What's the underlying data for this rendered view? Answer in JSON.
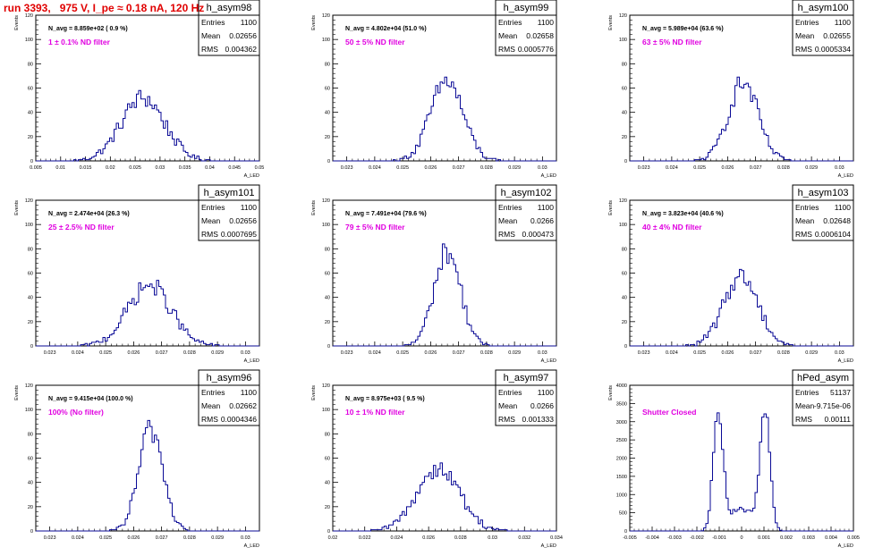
{
  "page": {
    "title": "run 3393,   975 V, I_pe ≈ 0.18 nA, 120 Hz"
  },
  "colors": {
    "histogram": "#0a0a96",
    "filter_label": "#e000e0",
    "title": "#e00000",
    "frame": "#000000"
  },
  "chart_data": [
    {
      "type": "bar",
      "name": "h_asym98",
      "annotation": "N_avg = 8.859e+02 ( 0.9 %)",
      "filter_label": "1 ± 0.1% ND filter",
      "stats": {
        "Entries": "1100",
        "Mean": "0.02656",
        "RMS": "0.004362"
      },
      "ylabel": "Events",
      "xlabel": "A_LED",
      "xlim": [
        0.005,
        0.05
      ],
      "ylim": [
        0,
        120
      ],
      "xticks": [
        "0.005",
        "0.01",
        "0.015",
        "0.02",
        "0.025",
        "0.03",
        "0.035",
        "0.04",
        "0.045",
        "0.05"
      ],
      "yticks": [
        "0",
        "20",
        "40",
        "60",
        "80",
        "100",
        "120"
      ],
      "peak": {
        "center": 0.02656,
        "rms": 0.004362,
        "height": 52
      }
    },
    {
      "type": "bar",
      "name": "h_asym99",
      "annotation": "N_avg = 4.802e+04 (51.0 %)",
      "filter_label": "50 ± 5% ND filter",
      "stats": {
        "Entries": "1100",
        "Mean": "0.02658",
        "RMS": "0.0005776"
      },
      "ylabel": "Events",
      "xlabel": "A_LED",
      "xlim": [
        0.0225,
        0.0305
      ],
      "ylim": [
        0,
        120
      ],
      "xticks": [
        "0.023",
        "0.024",
        "0.025",
        "0.026",
        "0.027",
        "0.028",
        "0.029",
        "0.03"
      ],
      "yticks": [
        "0",
        "20",
        "40",
        "60",
        "80",
        "100",
        "120"
      ],
      "peak": {
        "center": 0.02658,
        "rms": 0.0005776,
        "height": 66
      }
    },
    {
      "type": "bar",
      "name": "h_asym100",
      "annotation": "N_avg = 5.989e+04 (63.6 %)",
      "filter_label": "63 ± 5% ND filter",
      "stats": {
        "Entries": "1100",
        "Mean": "0.02655",
        "RMS": "0.0005334"
      },
      "ylabel": "Events",
      "xlabel": "A_LED",
      "xlim": [
        0.0225,
        0.0305
      ],
      "ylim": [
        0,
        120
      ],
      "xticks": [
        "0.023",
        "0.024",
        "0.025",
        "0.026",
        "0.027",
        "0.028",
        "0.029",
        "0.03"
      ],
      "yticks": [
        "0",
        "20",
        "40",
        "60",
        "80",
        "100",
        "120"
      ],
      "peak": {
        "center": 0.02655,
        "rms": 0.0005334,
        "height": 64
      }
    },
    {
      "type": "bar",
      "name": "h_asym101",
      "annotation": "N_avg = 2.474e+04 (26.3 %)",
      "filter_label": "25 ± 2.5% ND filter",
      "stats": {
        "Entries": "1100",
        "Mean": "0.02656",
        "RMS": "0.0007695"
      },
      "ylabel": "Events",
      "xlabel": "A_LED",
      "xlim": [
        0.0225,
        0.0305
      ],
      "ylim": [
        0,
        120
      ],
      "xticks": [
        "0.023",
        "0.024",
        "0.025",
        "0.026",
        "0.027",
        "0.028",
        "0.029",
        "0.03"
      ],
      "yticks": [
        "0",
        "20",
        "40",
        "60",
        "80",
        "100",
        "120"
      ],
      "peak": {
        "center": 0.02656,
        "rms": 0.0007695,
        "height": 50
      }
    },
    {
      "type": "bar",
      "name": "h_asym102",
      "annotation": "N_avg = 7.491e+04 (79.6 %)",
      "filter_label": "79 ± 5% ND filter",
      "stats": {
        "Entries": "1100",
        "Mean": "0.0266",
        "RMS": "0.000473"
      },
      "ylabel": "Events",
      "xlabel": "A_LED",
      "xlim": [
        0.0225,
        0.0305
      ],
      "ylim": [
        0,
        120
      ],
      "xticks": [
        "0.023",
        "0.024",
        "0.025",
        "0.026",
        "0.027",
        "0.028",
        "0.029",
        "0.03"
      ],
      "yticks": [
        "0",
        "20",
        "40",
        "60",
        "80",
        "100",
        "120"
      ],
      "peak": {
        "center": 0.0266,
        "rms": 0.000473,
        "height": 78
      }
    },
    {
      "type": "bar",
      "name": "h_asym103",
      "annotation": "N_avg = 3.823e+04 (40.6 %)",
      "filter_label": "40 ± 4% ND filter",
      "stats": {
        "Entries": "1100",
        "Mean": "0.02648",
        "RMS": "0.0006104"
      },
      "ylabel": "Events",
      "xlabel": "A_LED",
      "xlim": [
        0.0225,
        0.0305
      ],
      "ylim": [
        0,
        120
      ],
      "xticks": [
        "0.023",
        "0.024",
        "0.025",
        "0.026",
        "0.027",
        "0.028",
        "0.029",
        "0.03"
      ],
      "yticks": [
        "0",
        "20",
        "40",
        "60",
        "80",
        "100",
        "120"
      ],
      "peak": {
        "center": 0.02648,
        "rms": 0.0006104,
        "height": 58
      }
    },
    {
      "type": "bar",
      "name": "h_asym96",
      "annotation": "N_avg = 9.415e+04 (100.0 %)",
      "filter_label": "100% (No filter)",
      "stats": {
        "Entries": "1100",
        "Mean": "0.02662",
        "RMS": "0.0004346"
      },
      "ylabel": "Events",
      "xlabel": "A_LED",
      "xlim": [
        0.0225,
        0.0305
      ],
      "ylim": [
        0,
        120
      ],
      "xticks": [
        "0.023",
        "0.024",
        "0.025",
        "0.026",
        "0.027",
        "0.028",
        "0.029",
        "0.03"
      ],
      "yticks": [
        "0",
        "20",
        "40",
        "60",
        "80",
        "100",
        "120"
      ],
      "peak": {
        "center": 0.02662,
        "rms": 0.0004346,
        "height": 84
      }
    },
    {
      "type": "bar",
      "name": "h_asym97",
      "annotation": "N_avg = 8.975e+03 ( 9.5 %)",
      "filter_label": "10 ± 1% ND filter",
      "stats": {
        "Entries": "1100",
        "Mean": "0.0266",
        "RMS": "0.001333"
      },
      "ylabel": "Events",
      "xlabel": "A_LED",
      "xlim": [
        0.02,
        0.034
      ],
      "ylim": [
        0,
        120
      ],
      "xticks": [
        "0.02",
        "0.022",
        "0.024",
        "0.026",
        "0.028",
        "0.03",
        "0.032",
        "0.034"
      ],
      "yticks": [
        "0",
        "20",
        "40",
        "60",
        "80",
        "100",
        "120"
      ],
      "peak": {
        "center": 0.0266,
        "rms": 0.001333,
        "height": 52
      }
    },
    {
      "type": "bar",
      "name": "hPed_asym",
      "annotation": "",
      "filter_label": "Shutter Closed",
      "stats": {
        "Entries": "51137",
        "Mean": "-9.715e-06",
        "RMS": "0.00111"
      },
      "ylabel": "Events",
      "xlabel": "A_LED",
      "xlim": [
        -0.005,
        0.005
      ],
      "ylim": [
        0,
        4000
      ],
      "xticks": [
        "-0.005",
        "-0.004",
        "-0.003",
        "-0.002",
        "-0.001",
        "0",
        "0.001",
        "0.002",
        "0.003",
        "0.004",
        "0.005"
      ],
      "yticks": [
        "0",
        "500",
        "1000",
        "1500",
        "2000",
        "2500",
        "3000",
        "3500",
        "4000"
      ],
      "peaks": [
        {
          "center": -0.00105,
          "sigma": 0.00022,
          "height": 3250
        },
        {
          "center": 0.00105,
          "sigma": 0.00022,
          "height": 3300
        }
      ],
      "valley": 600
    }
  ]
}
